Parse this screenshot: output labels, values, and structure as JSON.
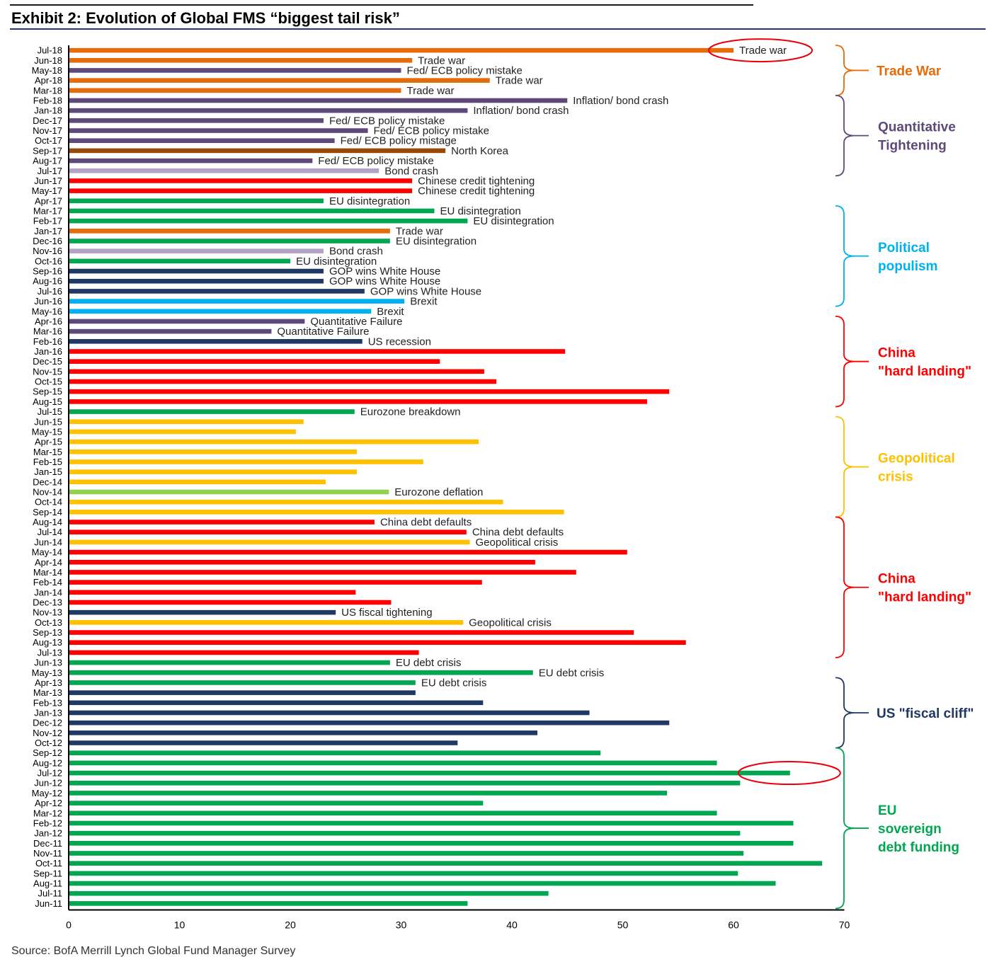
{
  "title": "Exhibit 2: Evolution of Global FMS “biggest tail risk”",
  "source": "Source:  BofA Merrill Lynch Global Fund Manager Survey",
  "colors": {
    "trade_war": "#E46C0A",
    "qt": "#5F497A",
    "qt_light": "#B3A2C7",
    "north_korea": "#984807",
    "china": "#FF0000",
    "eu": "#00A650",
    "eu_light": "#92D050",
    "us": "#1F3864",
    "brexit": "#00B0F0",
    "geo": "#FFC000",
    "circle": "#E8000B",
    "grid_axis": "#000000"
  },
  "chart_data": {
    "type": "bar",
    "orientation": "horizontal",
    "title": "Exhibit 2: Evolution of Global FMS “biggest tail risk”",
    "xlabel": "",
    "ylabel": "",
    "xlim": [
      0,
      70
    ],
    "xticks": [
      "0",
      "10",
      "20",
      "30",
      "40",
      "50",
      "60",
      "70"
    ],
    "grid": false,
    "legend": "none",
    "bars": [
      {
        "month": "Jul-18",
        "value": 60,
        "label": "Trade war",
        "color": "trade_war",
        "circled": true
      },
      {
        "month": "Jun-18",
        "value": 31,
        "label": "Trade war",
        "color": "trade_war"
      },
      {
        "month": "May-18",
        "value": 30,
        "label": "Fed/ ECB policy mistake",
        "color": "qt"
      },
      {
        "month": "Apr-18",
        "value": 38,
        "label": "Trade war",
        "color": "trade_war"
      },
      {
        "month": "Mar-18",
        "value": 30,
        "label": "Trade war",
        "color": "trade_war"
      },
      {
        "month": "Feb-18",
        "value": 45,
        "label": "Inflation/ bond crash",
        "color": "qt"
      },
      {
        "month": "Jan-18",
        "value": 36,
        "label": "Inflation/ bond crash",
        "color": "qt"
      },
      {
        "month": "Dec-17",
        "value": 23,
        "label": "Fed/ ECB policy mistake",
        "color": "qt"
      },
      {
        "month": "Nov-17",
        "value": 27,
        "label": "Fed/ ECB policy mistake",
        "color": "qt"
      },
      {
        "month": "Oct-17",
        "value": 24,
        "label": "Fed/ ECB policy mistage",
        "color": "qt"
      },
      {
        "month": "Sep-17",
        "value": 34,
        "label": "North Korea",
        "color": "north_korea"
      },
      {
        "month": "Aug-17",
        "value": 22,
        "label": "Fed/ ECB policy mistake",
        "color": "qt"
      },
      {
        "month": "Jul-17",
        "value": 28,
        "label": "Bond crash",
        "color": "qt_light"
      },
      {
        "month": "Jun-17",
        "value": 31,
        "label": "Chinese credit tightening",
        "color": "china"
      },
      {
        "month": "May-17",
        "value": 31,
        "label": "Chinese credit tightening",
        "color": "china"
      },
      {
        "month": "Apr-17",
        "value": 23,
        "label": "EU disintegration",
        "color": "eu"
      },
      {
        "month": "Mar-17",
        "value": 33,
        "label": "EU disintegration",
        "color": "eu"
      },
      {
        "month": "Feb-17",
        "value": 36,
        "label": "EU disintegration",
        "color": "eu"
      },
      {
        "month": "Jan-17",
        "value": 29,
        "label": "Trade war",
        "color": "trade_war"
      },
      {
        "month": "Dec-16",
        "value": 29,
        "label": "EU disintegration",
        "color": "eu"
      },
      {
        "month": "Nov-16",
        "value": 23,
        "label": "Bond crash",
        "color": "qt_light"
      },
      {
        "month": "Oct-16",
        "value": 20,
        "label": "EU disintegration",
        "color": "eu"
      },
      {
        "month": "Sep-16",
        "value": 23,
        "label": "GOP wins White House",
        "color": "us"
      },
      {
        "month": "Aug-16",
        "value": 23,
        "label": "GOP wins White House",
        "color": "us"
      },
      {
        "month": "Jul-16",
        "value": 26.7,
        "label": "GOP wins White House",
        "color": "us"
      },
      {
        "month": "Jun-16",
        "value": 30.3,
        "label": "Brexit",
        "color": "brexit"
      },
      {
        "month": "May-16",
        "value": 27.3,
        "label": "Brexit",
        "color": "brexit"
      },
      {
        "month": "Apr-16",
        "value": 21.3,
        "label": "Quantitative Failure",
        "color": "qt"
      },
      {
        "month": "Mar-16",
        "value": 18.3,
        "label": "Quantitative Failure",
        "color": "qt"
      },
      {
        "month": "Feb-16",
        "value": 26.5,
        "label": "US recession",
        "color": "us"
      },
      {
        "month": "Jan-16",
        "value": 44.8,
        "label": "",
        "color": "china"
      },
      {
        "month": "Dec-15",
        "value": 33.5,
        "label": "",
        "color": "china"
      },
      {
        "month": "Nov-15",
        "value": 37.5,
        "label": "",
        "color": "china"
      },
      {
        "month": "Oct-15",
        "value": 38.6,
        "label": "",
        "color": "china"
      },
      {
        "month": "Sep-15",
        "value": 54.2,
        "label": "",
        "color": "china"
      },
      {
        "month": "Aug-15",
        "value": 52.2,
        "label": "",
        "color": "china"
      },
      {
        "month": "Jul-15",
        "value": 25.8,
        "label": "Eurozone breakdown",
        "color": "eu"
      },
      {
        "month": "Jun-15",
        "value": 21.2,
        "label": "",
        "color": "geo"
      },
      {
        "month": "May-15",
        "value": 20.5,
        "label": "",
        "color": "geo"
      },
      {
        "month": "Apr-15",
        "value": 37,
        "label": "",
        "color": "geo"
      },
      {
        "month": "Mar-15",
        "value": 26,
        "label": "",
        "color": "geo"
      },
      {
        "month": "Feb-15",
        "value": 32,
        "label": "",
        "color": "geo"
      },
      {
        "month": "Jan-15",
        "value": 26,
        "label": "",
        "color": "geo"
      },
      {
        "month": "Dec-14",
        "value": 23.2,
        "label": "",
        "color": "geo"
      },
      {
        "month": "Nov-14",
        "value": 28.9,
        "label": "Eurozone deflation",
        "color": "eu_light"
      },
      {
        "month": "Oct-14",
        "value": 39.2,
        "label": "",
        "color": "geo"
      },
      {
        "month": "Sep-14",
        "value": 44.7,
        "label": "",
        "color": "geo"
      },
      {
        "month": "Aug-14",
        "value": 27.6,
        "label": "China debt defaults",
        "color": "china"
      },
      {
        "month": "Jul-14",
        "value": 35.9,
        "label": "China debt defaults",
        "color": "china"
      },
      {
        "month": "Jun-14",
        "value": 36.2,
        "label": "Geopolitical crisis",
        "color": "geo"
      },
      {
        "month": "May-14",
        "value": 50.4,
        "label": "",
        "color": "china"
      },
      {
        "month": "Apr-14",
        "value": 42.1,
        "label": "",
        "color": "china"
      },
      {
        "month": "Mar-14",
        "value": 45.8,
        "label": "",
        "color": "china"
      },
      {
        "month": "Feb-14",
        "value": 37.3,
        "label": "",
        "color": "china"
      },
      {
        "month": "Jan-14",
        "value": 25.9,
        "label": "",
        "color": "china"
      },
      {
        "month": "Dec-13",
        "value": 29.1,
        "label": "",
        "color": "china"
      },
      {
        "month": "Nov-13",
        "value": 24.1,
        "label": "US fiscal tightening",
        "color": "us"
      },
      {
        "month": "Oct-13",
        "value": 35.6,
        "label": "Geopolitical crisis",
        "color": "geo"
      },
      {
        "month": "Sep-13",
        "value": 51,
        "label": "",
        "color": "china"
      },
      {
        "month": "Aug-13",
        "value": 55.7,
        "label": "",
        "color": "china"
      },
      {
        "month": "Jul-13",
        "value": 31.6,
        "label": "",
        "color": "china"
      },
      {
        "month": "Jun-13",
        "value": 29,
        "label": "EU debt crisis",
        "color": "eu"
      },
      {
        "month": "May-13",
        "value": 41.9,
        "label": "EU debt crisis",
        "color": "eu"
      },
      {
        "month": "Apr-13",
        "value": 31.3,
        "label": "EU debt crisis",
        "color": "eu"
      },
      {
        "month": "Mar-13",
        "value": 31.3,
        "label": "",
        "color": "us"
      },
      {
        "month": "Feb-13",
        "value": 37.4,
        "label": "",
        "color": "us"
      },
      {
        "month": "Jan-13",
        "value": 47,
        "label": "",
        "color": "us"
      },
      {
        "month": "Dec-12",
        "value": 54.2,
        "label": "",
        "color": "us"
      },
      {
        "month": "Nov-12",
        "value": 42.3,
        "label": "",
        "color": "us"
      },
      {
        "month": "Oct-12",
        "value": 35.1,
        "label": "",
        "color": "us"
      },
      {
        "month": "Sep-12",
        "value": 48,
        "label": "",
        "color": "eu"
      },
      {
        "month": "Aug-12",
        "value": 58.5,
        "label": "",
        "color": "eu"
      },
      {
        "month": "Jul-12",
        "value": 65.1,
        "label": "",
        "color": "eu",
        "circled": true
      },
      {
        "month": "Jun-12",
        "value": 60.6,
        "label": "",
        "color": "eu"
      },
      {
        "month": "May-12",
        "value": 54,
        "label": "",
        "color": "eu"
      },
      {
        "month": "Apr-12",
        "value": 37.4,
        "label": "",
        "color": "eu"
      },
      {
        "month": "Mar-12",
        "value": 58.5,
        "label": "",
        "color": "eu"
      },
      {
        "month": "Feb-12",
        "value": 65.4,
        "label": "",
        "color": "eu"
      },
      {
        "month": "Jan-12",
        "value": 60.6,
        "label": "",
        "color": "eu"
      },
      {
        "month": "Dec-11",
        "value": 65.4,
        "label": "",
        "color": "eu"
      },
      {
        "month": "Nov-11",
        "value": 60.9,
        "label": "",
        "color": "eu"
      },
      {
        "month": "Oct-11",
        "value": 68,
        "label": "",
        "color": "eu"
      },
      {
        "month": "Sep-11",
        "value": 60.4,
        "label": "",
        "color": "eu"
      },
      {
        "month": "Aug-11",
        "value": 63.8,
        "label": "",
        "color": "eu"
      },
      {
        "month": "Jul-11",
        "value": 43.3,
        "label": "",
        "color": "eu"
      },
      {
        "month": "Jun-11",
        "value": 36,
        "label": "",
        "color": "eu"
      }
    ],
    "annotations": [
      {
        "text": "Trade War",
        "color": "trade_war",
        "from": "Jul-18",
        "to": "Mar-18"
      },
      {
        "text": "Quantitative\nTightening",
        "color": "qt",
        "from": "Feb-18",
        "to": "Jul-17"
      },
      {
        "text": "Political\npopulism",
        "color": "brexit",
        "from": "Mar-17",
        "to": "Jun-16"
      },
      {
        "text": "China\n\"hard landing\"",
        "color": "china",
        "from": "Apr-16",
        "to": "Aug-15"
      },
      {
        "text": "Geopolitical\ncrisis",
        "color": "geo",
        "from": "Jun-15",
        "to": "Sep-14"
      },
      {
        "text": "China\n\"hard landing\"",
        "color": "china",
        "from": "Aug-14",
        "to": "Jul-13"
      },
      {
        "text": "US \"fiscal cliff\"",
        "color": "us",
        "from": "Apr-13",
        "to": "Oct-12"
      },
      {
        "text": "EU\nsovereign\ndebt funding",
        "color": "eu",
        "from": "Sep-12",
        "to": "Jun-11"
      }
    ]
  }
}
